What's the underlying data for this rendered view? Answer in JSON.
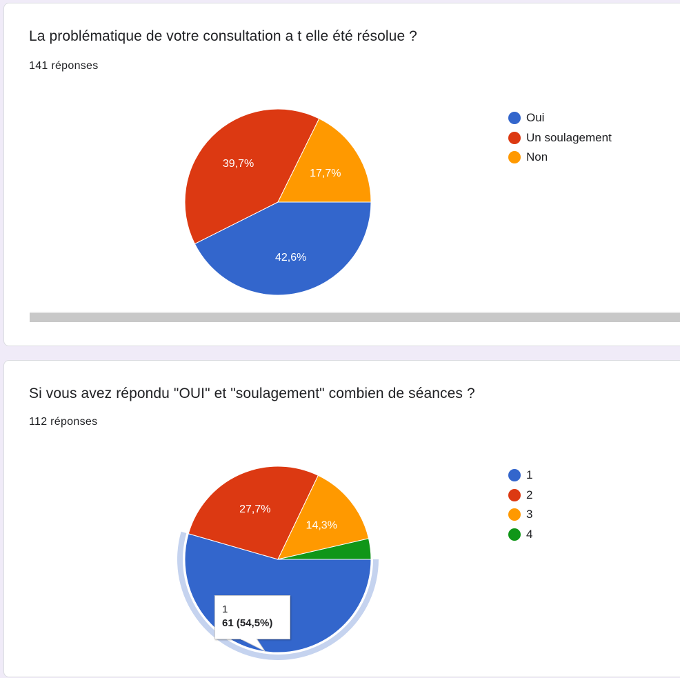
{
  "cards": [
    {
      "title": "La problématique de votre consultation a t elle été résolue ?",
      "count": "141 réponses",
      "chart_data": {
        "type": "pie",
        "categories": [
          "Oui",
          "Un soulagement",
          "Non"
        ],
        "values": [
          42.6,
          39.7,
          17.7
        ],
        "labels": [
          "42,6%",
          "39,7%",
          "17,7%"
        ],
        "colors": [
          "#3366cc",
          "#dc3912",
          "#ff9900"
        ],
        "legend_position": "right"
      }
    },
    {
      "title": "Si vous avez répondu \"OUI\" et \"soulagement\" combien de séances ?",
      "count": "112 réponses",
      "chart_data": {
        "type": "pie",
        "categories": [
          "1",
          "2",
          "3",
          "4"
        ],
        "values": [
          54.5,
          27.7,
          14.3,
          3.6
        ],
        "labels": [
          "",
          "27,7%",
          "14,3%",
          ""
        ],
        "colors": [
          "#3366cc",
          "#dc3912",
          "#ff9900",
          "#109618"
        ],
        "legend_position": "right",
        "highlighted_slice": 0,
        "tooltip": {
          "category": "1",
          "value": "61 (54,5%)"
        }
      }
    }
  ]
}
